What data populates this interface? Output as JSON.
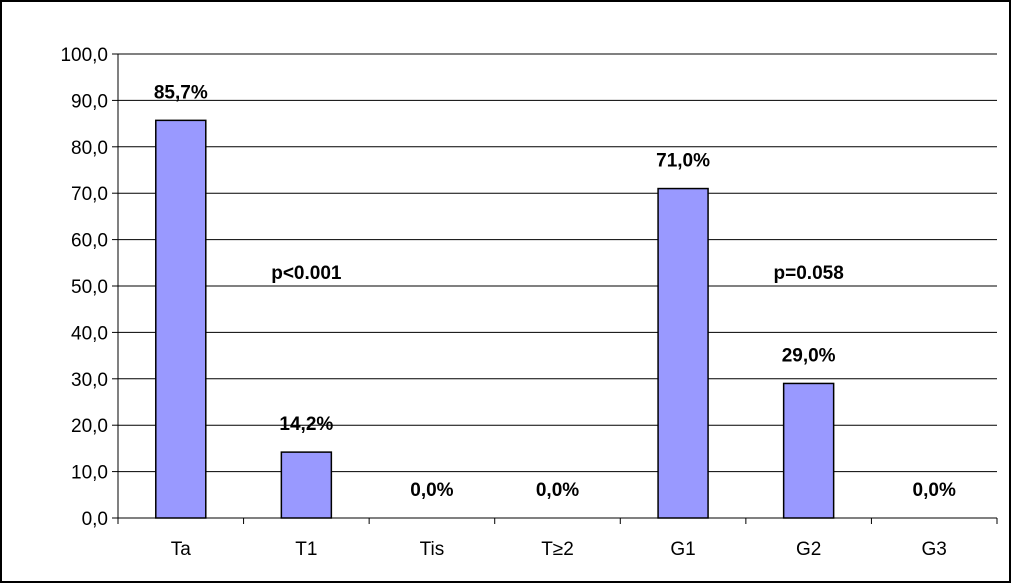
{
  "chart_data": {
    "type": "bar",
    "title": "",
    "xlabel": "",
    "ylabel": "",
    "categories": [
      "Ta",
      "T1",
      "Tis",
      "T≥2",
      "G1",
      "G2",
      "G3"
    ],
    "values": [
      85.7,
      14.2,
      0.0,
      0.0,
      71.0,
      29.0,
      0.0
    ],
    "data_labels": [
      "85,7%",
      "14,2%",
      "0,0%",
      "0,0%",
      "71,0%",
      "29,0%",
      "0,0%"
    ],
    "ylim": [
      0,
      100
    ],
    "yticks": [
      0,
      10,
      20,
      30,
      40,
      50,
      60,
      70,
      80,
      90,
      100
    ],
    "ytick_labels": [
      "0,0",
      "10,0",
      "20,0",
      "30,0",
      "40,0",
      "50,0",
      "60,0",
      "70,0",
      "80,0",
      "90,0",
      "100,0"
    ],
    "grid": true,
    "legend": "none",
    "bar_color": "#9999ff",
    "annotations": [
      {
        "text": "p<0.001",
        "anchor_category": "T1",
        "y": 53
      },
      {
        "text": "p=0.058",
        "anchor_category": "G2",
        "y": 53
      }
    ]
  }
}
